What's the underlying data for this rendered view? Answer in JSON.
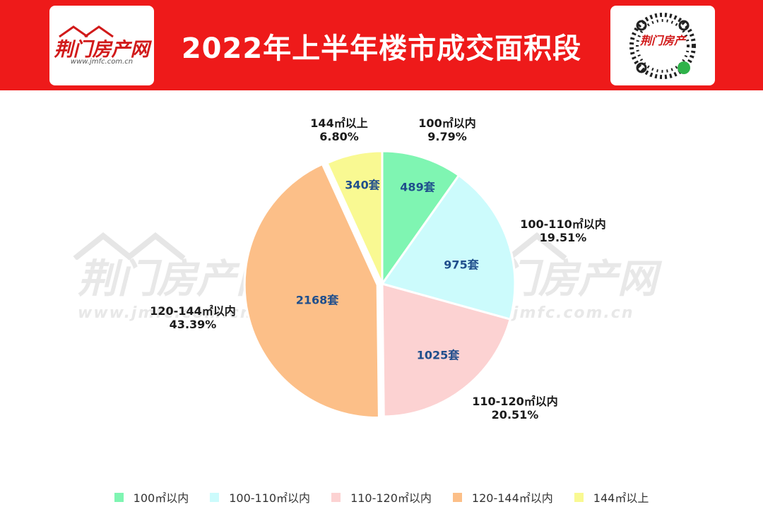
{
  "header": {
    "title": "2022年上半年楼市成交面积段",
    "logo_text": "荆门房产网",
    "logo_url": "www.jmfc.com.cn",
    "qr_text": "荆门房产"
  },
  "watermark": {
    "text": "荆门房产网",
    "url": "www.jmfc.com.cn"
  },
  "colors": {
    "header_bg": "#ee1a1a",
    "count_text": "#1f4e8c"
  },
  "chart_data": {
    "type": "pie",
    "title": "2022年上半年楼市成交面积段",
    "categories": [
      "100㎡以内",
      "100-110㎡以内",
      "110-120㎡以内",
      "120-144㎡以内",
      "144㎡以上"
    ],
    "values": [
      489,
      975,
      1025,
      2168,
      340
    ],
    "value_labels": [
      "489套",
      "975套",
      "1025套",
      "2168套",
      "340套"
    ],
    "percent_labels": [
      "9.79%",
      "19.51%",
      "20.51%",
      "43.39%",
      "6.80%"
    ],
    "colors": [
      "#7ff5b2",
      "#ccfbfc",
      "#fcd2d2",
      "#fcbf88",
      "#f9f992"
    ],
    "legend_position": "bottom",
    "start_angle_deg": 0,
    "direction": "clockwise",
    "exploded": [
      false,
      false,
      false,
      true,
      false
    ]
  }
}
